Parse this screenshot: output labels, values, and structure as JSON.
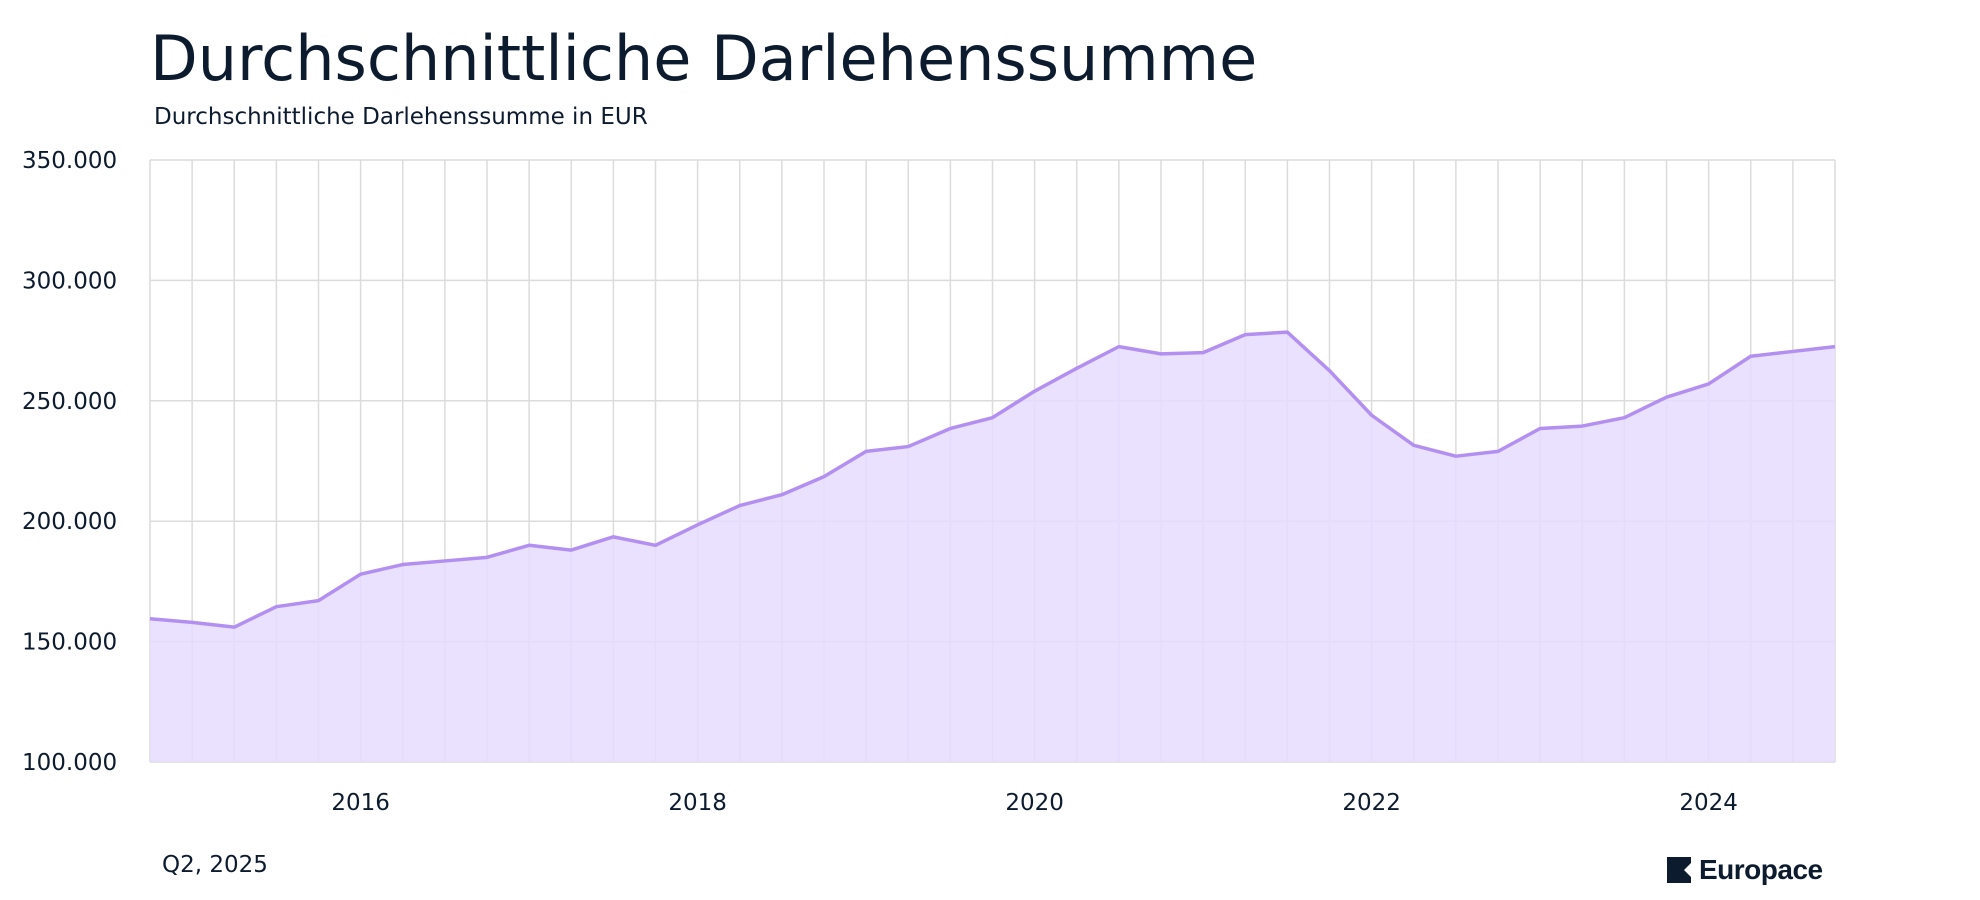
{
  "header": {
    "title": "Durchschnittliche Darlehenssumme",
    "subtitle": "Durchschnittliche Darlehenssumme in EUR"
  },
  "footer": {
    "date_label": "Q2, 2025",
    "brand": "Europace",
    "brand_icon": "europace-logo-icon"
  },
  "colors": {
    "line": "#b38ff2",
    "area": "#e5dcfe",
    "grid": "#dcdcdc",
    "text": "#0d1b2e"
  },
  "chart_data": {
    "type": "area",
    "title": "Durchschnittliche Darlehenssumme",
    "subtitle": "Durchschnittliche Darlehenssumme in EUR",
    "xlabel": "",
    "ylabel": "",
    "ylim": [
      100000,
      350000
    ],
    "yticks": [
      100000,
      150000,
      200000,
      250000,
      300000,
      350000
    ],
    "ytick_labels": [
      "100.000",
      "150.000",
      "200.000",
      "250.000",
      "300.000",
      "350.000"
    ],
    "xticks": [
      2016,
      2018,
      2020,
      2022,
      2024
    ],
    "xtick_labels": [
      "2016",
      "2018",
      "2020",
      "2022",
      "2024"
    ],
    "grid": true,
    "x": [
      "2014 Q4",
      "2015 Q1",
      "2015 Q2",
      "2015 Q3",
      "2015 Q4",
      "2016 Q1",
      "2016 Q2",
      "2016 Q3",
      "2016 Q4",
      "2017 Q1",
      "2017 Q2",
      "2017 Q3",
      "2017 Q4",
      "2018 Q1",
      "2018 Q2",
      "2018 Q3",
      "2018 Q4",
      "2019 Q1",
      "2019 Q2",
      "2019 Q3",
      "2019 Q4",
      "2020 Q1",
      "2020 Q2",
      "2020 Q3",
      "2020 Q4",
      "2021 Q1",
      "2021 Q2",
      "2021 Q3",
      "2021 Q4",
      "2022 Q1",
      "2022 Q2",
      "2022 Q3",
      "2022 Q4",
      "2023 Q1",
      "2023 Q2",
      "2023 Q3",
      "2023 Q4",
      "2024 Q1",
      "2024 Q2",
      "2024 Q3",
      "2024 Q4"
    ],
    "values": [
      159500,
      158000,
      156000,
      164500,
      167000,
      178000,
      182000,
      183500,
      185000,
      190000,
      188000,
      193500,
      190000,
      198500,
      206500,
      211000,
      218500,
      229000,
      231000,
      238500,
      243000,
      254000,
      263500,
      272500,
      269500,
      270000,
      277500,
      278500,
      262500,
      244000,
      231500,
      227000,
      229000,
      238500,
      239500,
      243000,
      251500,
      257000,
      268500,
      270500,
      272500
    ]
  }
}
